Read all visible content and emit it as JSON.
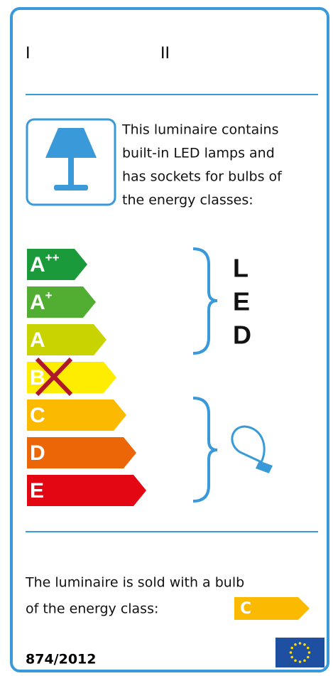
{
  "header": {
    "marks": [
      "I",
      "II"
    ]
  },
  "description": {
    "lines": [
      "This luminaire contains",
      "built-in LED lamps and",
      "has sockets for bulbs of",
      "the energy classes:"
    ]
  },
  "classes": [
    {
      "letter": "A",
      "sup": "++"
    },
    {
      "letter": "A",
      "sup": "+"
    },
    {
      "letter": "A"
    },
    {
      "letter": "B"
    },
    {
      "letter": "C"
    },
    {
      "letter": "D"
    },
    {
      "letter": "E"
    }
  ],
  "led": [
    "L",
    "E",
    "D"
  ],
  "footer": {
    "lines": [
      "The luminaire is sold with a bulb",
      "of the energy class:"
    ],
    "sold_class": "C",
    "regulation": "874/2012"
  }
}
